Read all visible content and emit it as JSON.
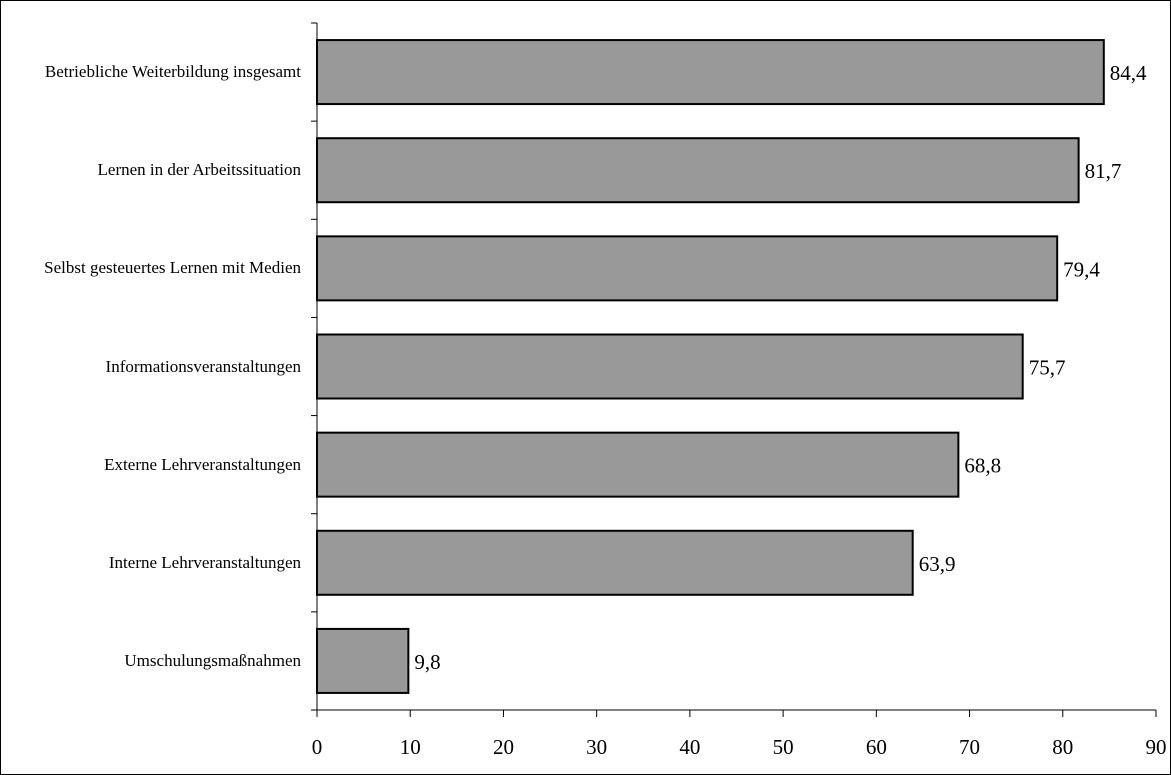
{
  "chart_data": {
    "type": "bar",
    "orientation": "horizontal",
    "title": "",
    "xlabel": "",
    "ylabel": "",
    "categories": [
      "Betriebliche Weiterbildung insgesamt",
      "Lernen in der Arbeitssituation",
      "Selbst gesteuertes Lernen mit Medien",
      "Informationsveranstaltungen",
      "Externe Lehrveranstaltungen",
      "Interne Lehrveranstaltungen",
      "Umschulungsmaßnahmen"
    ],
    "values": [
      84.4,
      81.7,
      79.4,
      75.7,
      68.8,
      63.9,
      9.8
    ],
    "value_labels": [
      "84,4",
      "81,7",
      "79,4",
      "75,7",
      "68,8",
      "63,9",
      "9,8"
    ],
    "xlim": [
      0,
      90
    ],
    "x_ticks": [
      0,
      10,
      20,
      30,
      40,
      50,
      60,
      70,
      80,
      90
    ],
    "x_tick_labels": [
      "0",
      "10",
      "20",
      "30",
      "40",
      "50",
      "60",
      "70",
      "80",
      "90"
    ],
    "bar_color": "#999999",
    "bar_edge_color": "#000000",
    "grid": false,
    "legend": "none"
  }
}
